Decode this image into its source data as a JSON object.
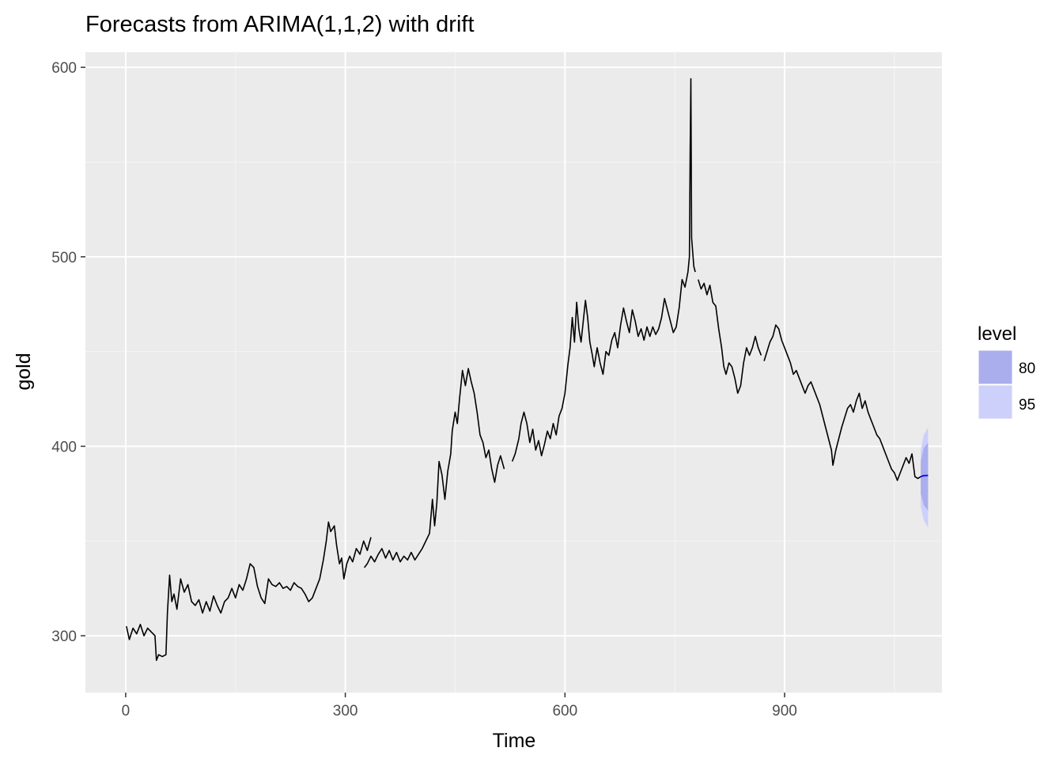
{
  "chart_data": {
    "type": "line",
    "title": "Forecasts from ARIMA(1,1,2) with drift",
    "xlabel": "Time",
    "ylabel": "gold",
    "xlim": [
      -55,
      1115
    ],
    "ylim": [
      270,
      608
    ],
    "x_ticks": [
      0,
      300,
      600,
      900
    ],
    "x_tick_labels": [
      "0",
      "300",
      "600",
      "900"
    ],
    "y_ticks": [
      300,
      400,
      500,
      600
    ],
    "y_tick_labels": [
      "300",
      "400",
      "500",
      "600"
    ],
    "grid": true,
    "legend": {
      "title": "level",
      "placement": "right",
      "entries": [
        {
          "label": "80",
          "color": "#aaaeed"
        },
        {
          "label": "95",
          "color": "#cdd0fa"
        }
      ]
    },
    "series": [
      {
        "role": "observed",
        "color": "#000000",
        "points": [
          [
            1,
            305
          ],
          [
            5,
            298
          ],
          [
            10,
            304
          ],
          [
            15,
            301
          ],
          [
            20,
            306
          ],
          [
            25,
            300
          ],
          [
            30,
            304
          ],
          [
            35,
            302
          ],
          [
            40,
            300
          ],
          [
            42,
            287
          ],
          [
            45,
            290
          ],
          [
            50,
            289
          ],
          [
            55,
            290
          ],
          [
            57,
            312
          ],
          [
            60,
            332
          ],
          [
            63,
            318
          ],
          [
            66,
            322
          ],
          [
            70,
            314
          ],
          [
            75,
            330
          ],
          [
            80,
            323
          ],
          [
            85,
            327
          ],
          [
            90,
            318
          ],
          [
            95,
            316
          ],
          [
            100,
            319
          ],
          [
            105,
            312
          ],
          [
            110,
            318
          ],
          [
            115,
            313
          ],
          [
            120,
            321
          ],
          [
            125,
            316
          ],
          [
            130,
            312
          ],
          [
            135,
            318
          ],
          [
            140,
            320
          ],
          [
            145,
            325
          ],
          [
            150,
            320
          ],
          [
            155,
            327
          ],
          [
            160,
            324
          ],
          [
            165,
            330
          ],
          [
            170,
            338
          ],
          [
            175,
            336
          ],
          [
            180,
            326
          ],
          [
            185,
            320
          ],
          [
            190,
            317
          ],
          [
            195,
            330
          ],
          [
            200,
            327
          ],
          [
            205,
            326
          ],
          [
            210,
            328
          ],
          [
            215,
            325
          ],
          [
            220,
            326
          ],
          [
            225,
            324
          ],
          [
            230,
            328
          ],
          [
            235,
            326
          ],
          [
            240,
            325
          ],
          [
            245,
            322
          ],
          [
            250,
            318
          ],
          [
            255,
            320
          ],
          [
            260,
            325
          ],
          [
            265,
            330
          ],
          [
            270,
            340
          ],
          [
            274,
            350
          ],
          [
            277,
            360
          ],
          [
            280,
            355
          ],
          [
            285,
            358
          ],
          [
            288,
            348
          ],
          [
            292,
            338
          ],
          [
            295,
            341
          ],
          [
            298,
            330
          ],
          [
            302,
            338
          ],
          [
            306,
            342
          ],
          [
            310,
            339
          ],
          [
            315,
            346
          ],
          [
            320,
            343
          ],
          [
            325,
            350
          ],
          [
            330,
            345
          ],
          [
            335,
            352
          ],
          [
            330,
            null
          ],
          [
            326,
            336
          ],
          [
            330,
            338
          ],
          [
            335,
            342
          ],
          [
            340,
            339
          ],
          [
            345,
            343
          ],
          [
            350,
            346
          ],
          [
            355,
            341
          ],
          [
            360,
            345
          ],
          [
            365,
            340
          ],
          [
            370,
            344
          ],
          [
            375,
            339
          ],
          [
            380,
            342
          ],
          [
            385,
            340
          ],
          [
            390,
            344
          ],
          [
            395,
            340
          ],
          [
            400,
            343
          ],
          [
            405,
            346
          ],
          [
            410,
            350
          ],
          [
            415,
            354
          ],
          [
            419,
            372
          ],
          [
            422,
            358
          ],
          [
            425,
            370
          ],
          [
            428,
            392
          ],
          [
            432,
            385
          ],
          [
            436,
            372
          ],
          [
            440,
            387
          ],
          [
            444,
            396
          ],
          [
            446,
            408
          ],
          [
            450,
            418
          ],
          [
            453,
            412
          ],
          [
            456,
            425
          ],
          [
            460,
            440
          ],
          [
            464,
            432
          ],
          [
            468,
            441
          ],
          [
            472,
            434
          ],
          [
            476,
            428
          ],
          [
            480,
            418
          ],
          [
            484,
            406
          ],
          [
            488,
            402
          ],
          [
            492,
            394
          ],
          [
            496,
            398
          ],
          [
            500,
            388
          ],
          [
            504,
            381
          ],
          [
            508,
            390
          ],
          [
            512,
            395
          ],
          [
            517,
            388
          ],
          [
            519,
            null
          ],
          [
            528,
            392
          ],
          [
            532,
            396
          ],
          [
            537,
            404
          ],
          [
            540,
            412
          ],
          [
            544,
            418
          ],
          [
            548,
            412
          ],
          [
            552,
            402
          ],
          [
            556,
            409
          ],
          [
            560,
            398
          ],
          [
            564,
            403
          ],
          [
            568,
            395
          ],
          [
            572,
            401
          ],
          [
            576,
            408
          ],
          [
            580,
            404
          ],
          [
            584,
            412
          ],
          [
            588,
            406
          ],
          [
            592,
            416
          ],
          [
            596,
            420
          ],
          [
            600,
            428
          ],
          [
            604,
            443
          ],
          [
            607,
            452
          ],
          [
            610,
            468
          ],
          [
            613,
            455
          ],
          [
            616,
            476
          ],
          [
            619,
            462
          ],
          [
            622,
            455
          ],
          [
            625,
            466
          ],
          [
            628,
            477
          ],
          [
            631,
            468
          ],
          [
            634,
            455
          ],
          [
            637,
            449
          ],
          [
            640,
            442
          ],
          [
            644,
            452
          ],
          [
            648,
            444
          ],
          [
            652,
            438
          ],
          [
            656,
            450
          ],
          [
            660,
            448
          ],
          [
            664,
            456
          ],
          [
            668,
            460
          ],
          [
            672,
            452
          ],
          [
            676,
            464
          ],
          [
            680,
            473
          ],
          [
            684,
            466
          ],
          [
            688,
            460
          ],
          [
            692,
            472
          ],
          [
            696,
            466
          ],
          [
            700,
            458
          ],
          [
            704,
            462
          ],
          [
            708,
            456
          ],
          [
            712,
            463
          ],
          [
            716,
            458
          ],
          [
            720,
            463
          ],
          [
            724,
            459
          ],
          [
            728,
            462
          ],
          [
            732,
            468
          ],
          [
            736,
            478
          ],
          [
            740,
            472
          ],
          [
            744,
            466
          ],
          [
            748,
            460
          ],
          [
            752,
            463
          ],
          [
            756,
            473
          ],
          [
            760,
            488
          ],
          [
            764,
            484
          ],
          [
            768,
            492
          ],
          [
            770,
            500
          ],
          [
            771,
            555
          ],
          [
            772,
            594
          ],
          [
            773,
            510
          ],
          [
            776,
            495
          ],
          [
            778,
            492
          ],
          [
            778,
            null
          ],
          [
            782,
            488
          ],
          [
            786,
            483
          ],
          [
            790,
            486
          ],
          [
            794,
            480
          ],
          [
            798,
            485
          ],
          [
            802,
            476
          ],
          [
            806,
            474
          ],
          [
            810,
            462
          ],
          [
            814,
            452
          ],
          [
            817,
            442
          ],
          [
            820,
            438
          ],
          [
            824,
            444
          ],
          [
            828,
            442
          ],
          [
            832,
            436
          ],
          [
            836,
            428
          ],
          [
            840,
            432
          ],
          [
            844,
            444
          ],
          [
            848,
            452
          ],
          [
            852,
            448
          ],
          [
            856,
            452
          ],
          [
            860,
            458
          ],
          [
            864,
            452
          ],
          [
            868,
            448
          ],
          [
            870,
            null
          ],
          [
            872,
            445
          ],
          [
            876,
            450
          ],
          [
            880,
            455
          ],
          [
            884,
            458
          ],
          [
            888,
            464
          ],
          [
            892,
            462
          ],
          [
            896,
            456
          ],
          [
            900,
            452
          ],
          [
            904,
            448
          ],
          [
            908,
            444
          ],
          [
            912,
            438
          ],
          [
            916,
            440
          ],
          [
            920,
            436
          ],
          [
            924,
            432
          ],
          [
            928,
            428
          ],
          [
            932,
            432
          ],
          [
            936,
            434
          ],
          [
            940,
            430
          ],
          [
            944,
            426
          ],
          [
            948,
            422
          ],
          [
            952,
            416
          ],
          [
            956,
            410
          ],
          [
            960,
            404
          ],
          [
            964,
            398
          ],
          [
            966,
            390
          ],
          [
            970,
            398
          ],
          [
            974,
            404
          ],
          [
            978,
            410
          ],
          [
            982,
            415
          ],
          [
            986,
            420
          ],
          [
            990,
            422
          ],
          [
            994,
            418
          ],
          [
            998,
            424
          ],
          [
            1002,
            428
          ],
          [
            1006,
            420
          ],
          [
            1010,
            424
          ],
          [
            1014,
            418
          ],
          [
            1018,
            414
          ],
          [
            1022,
            410
          ],
          [
            1026,
            406
          ],
          [
            1030,
            404
          ],
          [
            1034,
            400
          ],
          [
            1038,
            396
          ],
          [
            1042,
            392
          ],
          [
            1046,
            388
          ],
          [
            1050,
            386
          ],
          [
            1054,
            382
          ],
          [
            1058,
            386
          ],
          [
            1062,
            390
          ],
          [
            1066,
            394
          ],
          [
            1070,
            391
          ],
          [
            1074,
            396
          ],
          [
            1078,
            384
          ],
          [
            1082,
            383
          ],
          [
            1086,
            384
          ]
        ]
      },
      {
        "role": "forecast mean",
        "color": "#0000ff",
        "points": [
          [
            1086,
            384
          ],
          [
            1090,
            384.5
          ],
          [
            1096,
            384.6
          ]
        ]
      }
    ],
    "forecast_intervals": {
      "x": [
        1086,
        1090,
        1096
      ],
      "lower_80": [
        375,
        369,
        366
      ],
      "upper_80": [
        392,
        399,
        402
      ],
      "lower_95": [
        368,
        361,
        357
      ],
      "upper_95": [
        398,
        406,
        410
      ]
    }
  }
}
